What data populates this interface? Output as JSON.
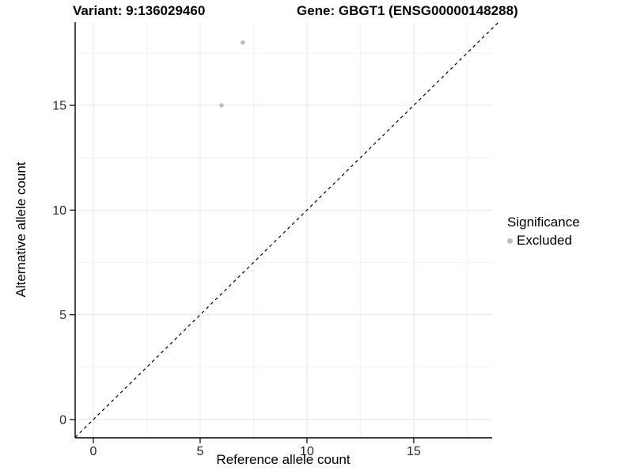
{
  "chart_data": {
    "type": "scatter",
    "titles": {
      "variant": "Variant: 9:136029460",
      "gene": "Gene: GBGT1 (ENSG00000148288)"
    },
    "xlabel": "Reference allele count",
    "ylabel": "Alternative allele count",
    "xlim": [
      -0.85,
      18.67
    ],
    "ylim": [
      -0.87,
      18.97
    ],
    "x_major_ticks": [
      0,
      5,
      10,
      15
    ],
    "y_major_ticks": [
      0,
      5,
      10,
      15
    ],
    "x_minor_ticks": [
      2.5,
      7.5,
      12.5,
      17.5
    ],
    "y_minor_ticks": [
      2.5,
      7.5,
      12.5,
      17.5
    ],
    "grid": true,
    "reference_line": {
      "slope": 1,
      "intercept": 0,
      "style": "dashed",
      "x_start": -0.85,
      "x_end": 19.0
    },
    "series": [
      {
        "name": "Excluded",
        "color": "#bdbdbd",
        "points": [
          {
            "x": 6,
            "y": 15
          },
          {
            "x": 7,
            "y": 18
          }
        ]
      }
    ],
    "legend": {
      "position": "right",
      "title": "Significance",
      "items": [
        {
          "label": "Excluded",
          "color": "#bdbdbd"
        }
      ]
    },
    "colors": {
      "axis_line": "#000000",
      "tick_label": "#2b2b2b",
      "grid_major": "#e6e6e6",
      "grid_minor": "#f2f2f2",
      "reference_line": "#000000",
      "background": "#ffffff"
    }
  }
}
